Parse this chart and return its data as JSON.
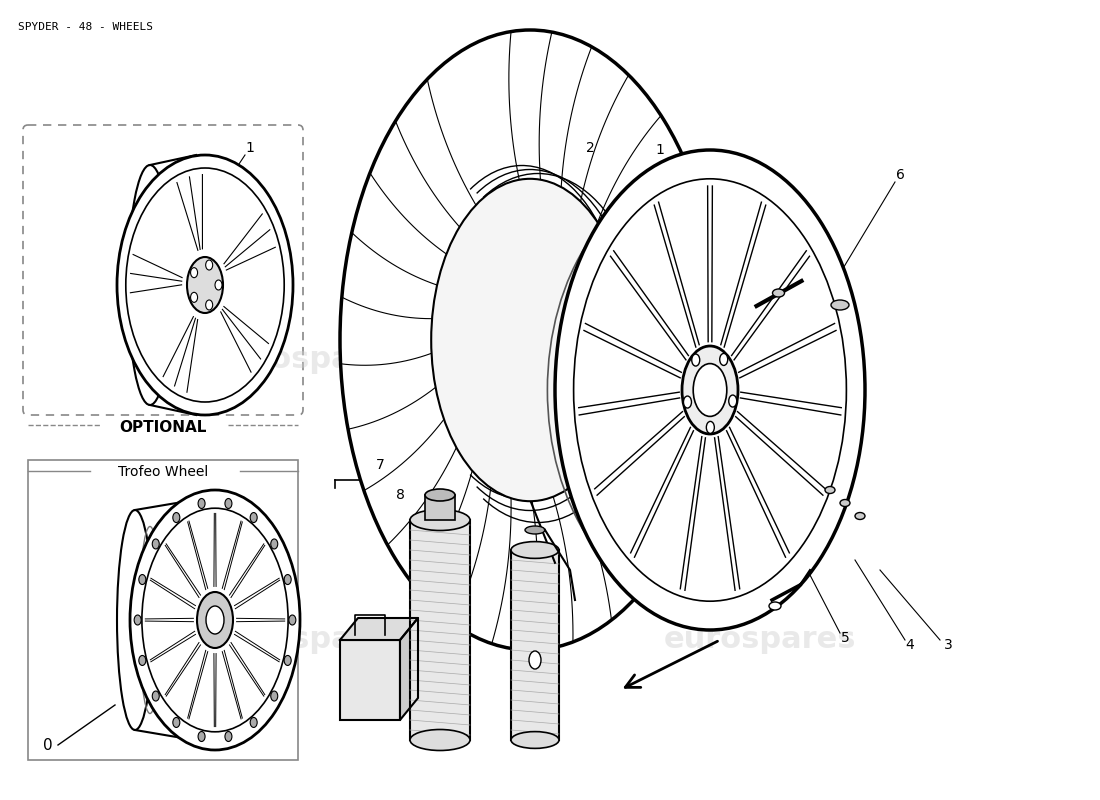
{
  "title": "SPYDER - 48 - WHEELS",
  "background_color": "#ffffff",
  "title_fontsize": 8,
  "watermark_text": "eurospares",
  "optional_label": "OPTIONAL",
  "trofeo_label": "Trofeo Wheel",
  "fig_width": 11.0,
  "fig_height": 8.0,
  "dpi": 100
}
